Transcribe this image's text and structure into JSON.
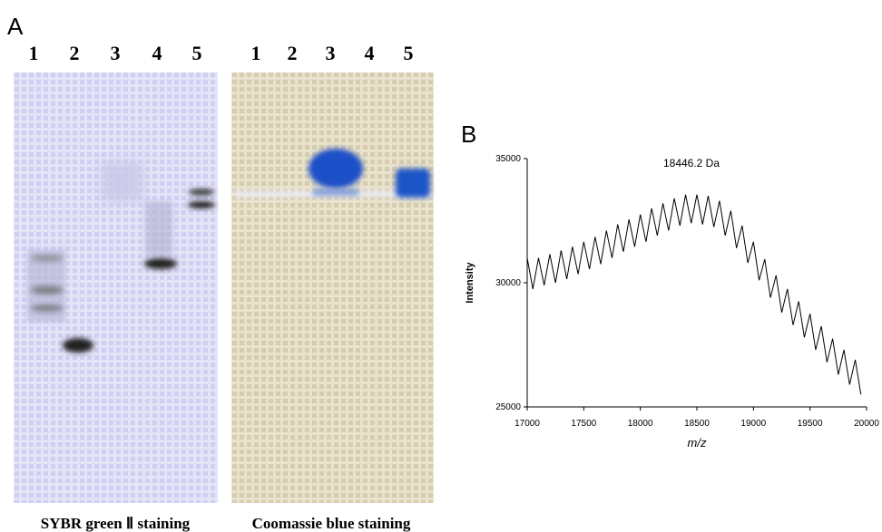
{
  "figure": {
    "panel_a": {
      "label": "A",
      "gels": [
        {
          "lanes": [
            "1",
            "2",
            "3",
            "4",
            "5"
          ],
          "caption": "SYBR green Ⅱ staining"
        },
        {
          "lanes": [
            "1",
            "2",
            "3",
            "4",
            "5"
          ],
          "caption": "Coomassie blue staining"
        }
      ]
    }
  },
  "chart_data": {
    "type": "line",
    "panel_label": "B",
    "annotation": "18446.2 Da",
    "xlabel": "m/z",
    "ylabel": "Intensity",
    "x": [
      17000,
      17050,
      17100,
      17150,
      17200,
      17250,
      17300,
      17350,
      17400,
      17450,
      17500,
      17550,
      17600,
      17650,
      17700,
      17750,
      17800,
      17850,
      17900,
      17950,
      18000,
      18050,
      18100,
      18150,
      18200,
      18250,
      18300,
      18350,
      18400,
      18450,
      18500,
      18550,
      18600,
      18650,
      18700,
      18750,
      18800,
      18850,
      18900,
      18950,
      19000,
      19050,
      19100,
      19150,
      19200,
      19250,
      19300,
      19350,
      19400,
      19450,
      19500,
      19550,
      19600,
      19650,
      19700,
      19750,
      19800,
      19850,
      19900,
      19950
    ],
    "series": [
      {
        "color": "#000000",
        "values": [
          31000,
          29750,
          31000,
          29900,
          31150,
          30000,
          31300,
          30150,
          31450,
          30350,
          31650,
          30550,
          31850,
          30750,
          32100,
          31000,
          32350,
          31250,
          32550,
          31450,
          32750,
          31650,
          33000,
          31900,
          33200,
          32100,
          33400,
          32300,
          33550,
          32400,
          33550,
          32350,
          33500,
          32250,
          33300,
          31900,
          32900,
          31400,
          32300,
          30800,
          31650,
          30100,
          30950,
          29400,
          30300,
          28800,
          29750,
          28300,
          29250,
          27800,
          28750,
          27300,
          28250,
          26800,
          27750,
          26300,
          27300,
          25900,
          26900,
          25500
        ]
      }
    ],
    "xlim": [
      17000,
      20000
    ],
    "ylim": [
      25000,
      35000
    ],
    "xticks": [
      17000,
      17500,
      18000,
      18500,
      19000,
      19500,
      20000
    ],
    "yticks": [
      25000,
      30000,
      35000
    ]
  }
}
